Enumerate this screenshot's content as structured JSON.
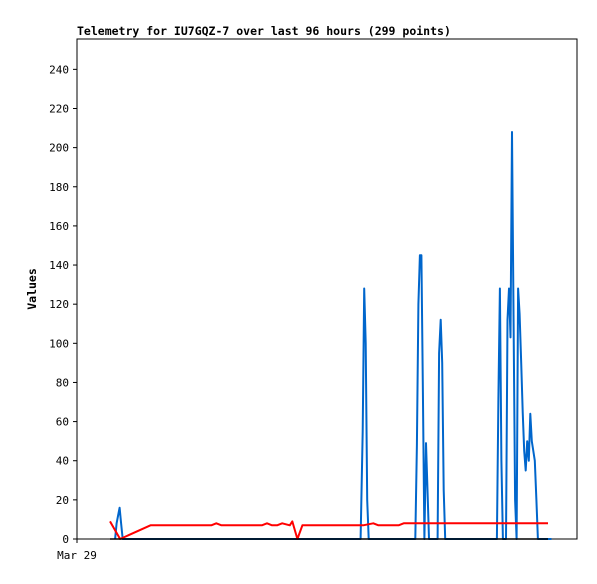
{
  "chart_data": {
    "type": "line",
    "title": "Telemetry for IU7GQZ-7 over last 96 hours (299 points)",
    "ylabel": "Values",
    "xlabel": "",
    "ylim": [
      0,
      255
    ],
    "yticks": [
      0,
      20,
      40,
      60,
      80,
      100,
      120,
      140,
      160,
      180,
      200,
      220,
      240
    ],
    "xlim": [
      0,
      96
    ],
    "xtick_labels": [
      {
        "x": 0,
        "label": "Mar 29"
      }
    ],
    "grid": false,
    "legend": "none",
    "series": [
      {
        "color": "#0066cc",
        "x": [
          11,
          11.3,
          11.6,
          11.9,
          12.2,
          12.5,
          12.8,
          13.1,
          59.5,
          59.9,
          60.2,
          60.5,
          60.8,
          61.1,
          70.3,
          70.6,
          70.9,
          71.2,
          71.5,
          71.8,
          72.1,
          72.4,
          72.7,
          73.0,
          73.3,
          73.6,
          74.7,
          75.0,
          75.3,
          75.6,
          75.9,
          76.2,
          86.4,
          86.7,
          87.0,
          87.3,
          87.6,
          87.9,
          88.2,
          88.5,
          88.8,
          89.1,
          89.4,
          89.7,
          90.0,
          90.3,
          90.6,
          90.9,
          91.2,
          91.5,
          91.8,
          92.1,
          92.4,
          92.7,
          93.0,
          93.3,
          93.6,
          93.9,
          94.2,
          94.5,
          94.8,
          95.1,
          95.4,
          95.7,
          96.0,
          96.3,
          96.6,
          96.9,
          97.2
        ],
        "y": [
          0,
          8,
          12,
          16,
          8,
          0,
          0,
          0,
          0,
          55,
          128,
          100,
          20,
          0,
          0,
          48,
          120,
          145,
          145,
          75,
          0,
          49,
          25,
          0,
          0,
          0,
          0,
          95,
          112,
          90,
          25,
          0,
          0,
          72,
          128,
          40,
          0,
          0,
          0,
          112,
          128,
          103,
          208,
          110,
          20,
          0,
          128,
          115,
          90,
          65,
          45,
          35,
          50,
          40,
          64,
          50,
          45,
          40,
          20,
          0,
          0,
          0,
          0,
          0,
          0,
          0,
          0,
          0,
          0
        ]
      },
      {
        "color": "#ff0000",
        "x": [
          10,
          12,
          18,
          30,
          31,
          32,
          40,
          41,
          42,
          43,
          44,
          45.5,
          46,
          47,
          48,
          49,
          49.5,
          51,
          60,
          62,
          63,
          64,
          67,
          68,
          70,
          80,
          85,
          96.5
        ],
        "y": [
          9,
          0,
          7,
          7,
          8,
          7,
          7,
          8,
          7,
          7,
          8,
          7,
          9,
          0,
          7,
          7,
          7,
          7,
          7,
          8,
          7,
          7,
          7,
          8,
          8,
          8,
          8,
          8
        ]
      },
      {
        "color": "#000000",
        "x": [
          10,
          96.5
        ],
        "y": [
          0,
          0
        ]
      }
    ]
  }
}
